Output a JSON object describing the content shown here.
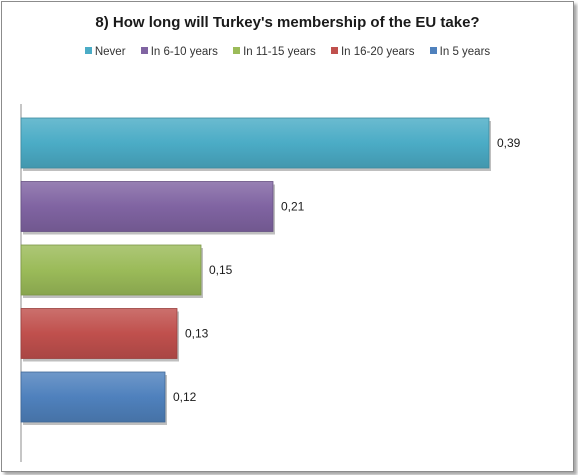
{
  "chart_data": {
    "type": "bar",
    "orientation": "horizontal",
    "title": "8) How long will Turkey's membership of the EU take?",
    "categories": [
      "Never",
      "In 6-10 years",
      "In 11-15 years",
      "In 16-20 years",
      "In 5 years"
    ],
    "values": [
      0.39,
      0.21,
      0.15,
      0.13,
      0.12
    ],
    "value_labels": [
      "0,39",
      "0,21",
      "0,15",
      "0,13",
      "0,12"
    ],
    "colors": [
      "#4bacc6",
      "#8064a2",
      "#9bbb59",
      "#c0504d",
      "#4f81bd"
    ],
    "xlim": [
      0,
      0.45
    ],
    "grid": false,
    "legend_position": "top",
    "xlabel": "",
    "ylabel": ""
  }
}
